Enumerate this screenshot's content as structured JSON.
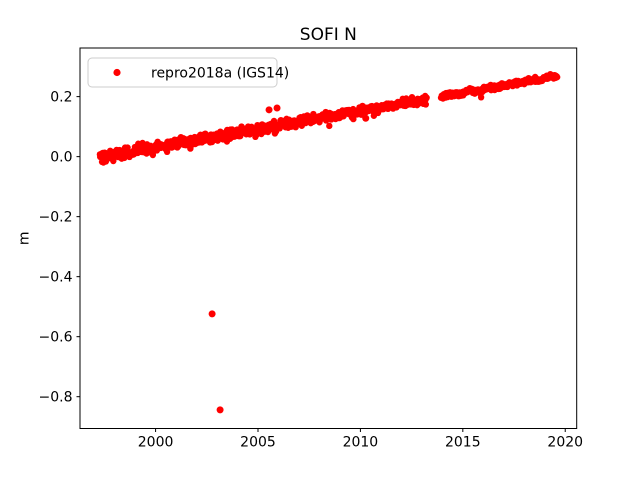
{
  "window": {
    "background": "#ffffff"
  },
  "chart_data": {
    "type": "scatter",
    "title": "SOFI N",
    "xlabel": "",
    "ylabel": "m",
    "grid": false,
    "xlim": [
      1996.31,
      2020.56
    ],
    "ylim": [
      -0.906,
      0.362
    ],
    "xticks": [
      {
        "value": 2000,
        "label": "2000"
      },
      {
        "value": 2005,
        "label": "2005"
      },
      {
        "value": 2010,
        "label": "2010"
      },
      {
        "value": 2015,
        "label": "2015"
      },
      {
        "value": 2020,
        "label": "2020"
      }
    ],
    "yticks": [
      {
        "value": 0.2,
        "label": "0.2"
      },
      {
        "value": 0.0,
        "label": "0.0"
      },
      {
        "value": -0.2,
        "label": "−0.2"
      },
      {
        "value": -0.4,
        "label": "−0.4"
      },
      {
        "value": -0.6,
        "label": "−0.6"
      },
      {
        "value": -0.8,
        "label": "−0.8"
      }
    ],
    "legend": {
      "position": "upper-left",
      "entries": [
        {
          "label": "repro2018a (IGS14)",
          "color": "#ff0000",
          "marker": "dot"
        }
      ]
    },
    "series": [
      {
        "name": "repro2018a (IGS14)",
        "color": "#ff0000",
        "marker": "dot",
        "marker_radius_px": 3.2,
        "trend": {
          "x_start": 1997.28,
          "y_start": -0.002,
          "x_end": 2019.6,
          "y_end": 0.268,
          "slope_m_per_year": 0.0121
        },
        "band_segments": [
          {
            "x_start": 1997.28,
            "x_end": 2013.24,
            "samples_per_year": 50,
            "noise_sd_start": 0.009,
            "noise_sd_end": 0.006,
            "neg_spike_rate": 0.03,
            "neg_spike_max": 0.028
          },
          {
            "x_start": 2013.94,
            "x_end": 2019.6,
            "samples_per_year": 55,
            "noise_sd_start": 0.0045,
            "noise_sd_end": 0.004,
            "neg_spike_rate": 0.012,
            "neg_spike_max": 0.012
          }
        ],
        "annual_wiggle_amplitude": 0.0025,
        "outlier_points": [
          {
            "x": 2002.76,
            "y": -0.524
          },
          {
            "x": 2003.15,
            "y": -0.844
          },
          {
            "x": 2005.54,
            "y": 0.156
          },
          {
            "x": 2005.93,
            "y": 0.162
          },
          {
            "x": 2010.26,
            "y": 0.128
          }
        ]
      }
    ]
  }
}
